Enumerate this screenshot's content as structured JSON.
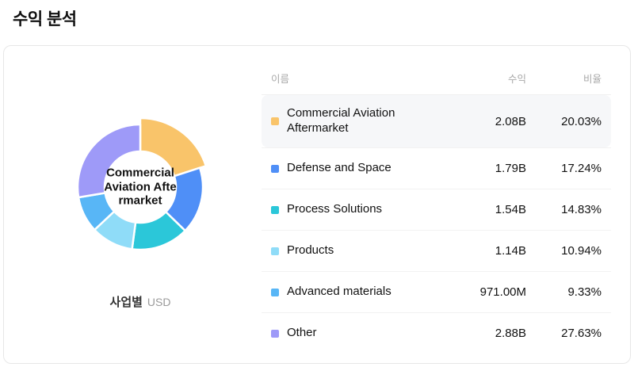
{
  "page_title": "수익 분석",
  "chart": {
    "center_label": "Commercial Aviation Aftermarket",
    "footer_label": "사업별",
    "footer_unit": "USD"
  },
  "table": {
    "headers": {
      "name": "이름",
      "revenue": "수익",
      "ratio": "비율"
    },
    "rows": [
      {
        "name": "Commercial Aviation Aftermarket",
        "revenue": "2.08B",
        "ratio": "20.03%"
      },
      {
        "name": "Defense and Space",
        "revenue": "1.79B",
        "ratio": "17.24%"
      },
      {
        "name": "Process Solutions",
        "revenue": "1.54B",
        "ratio": "14.83%"
      },
      {
        "name": "Products",
        "revenue": "1.14B",
        "ratio": "10.94%"
      },
      {
        "name": "Advanced materials",
        "revenue": "971.00M",
        "ratio": "9.33%"
      },
      {
        "name": "Other",
        "revenue": "2.88B",
        "ratio": "27.63%"
      }
    ]
  },
  "chart_data": {
    "type": "pie",
    "title": "수익 분석",
    "group_by": "사업별",
    "unit": "USD",
    "categories": [
      "Commercial Aviation Aftermarket",
      "Defense and Space",
      "Process Solutions",
      "Products",
      "Advanced materials",
      "Other"
    ],
    "values": [
      20.03,
      17.24,
      14.83,
      10.94,
      9.33,
      27.63
    ],
    "revenues": [
      "2.08B",
      "1.79B",
      "1.54B",
      "1.14B",
      "971.00M",
      "2.88B"
    ],
    "colors": [
      "#f9c46a",
      "#4f8ff7",
      "#2bc7d9",
      "#8fdcf8",
      "#58b6f6",
      "#9e9af8"
    ],
    "highlighted_index": 0,
    "start_angle_deg": 0,
    "direction": "clockwise",
    "donut": true,
    "legend_position": "right-table"
  }
}
